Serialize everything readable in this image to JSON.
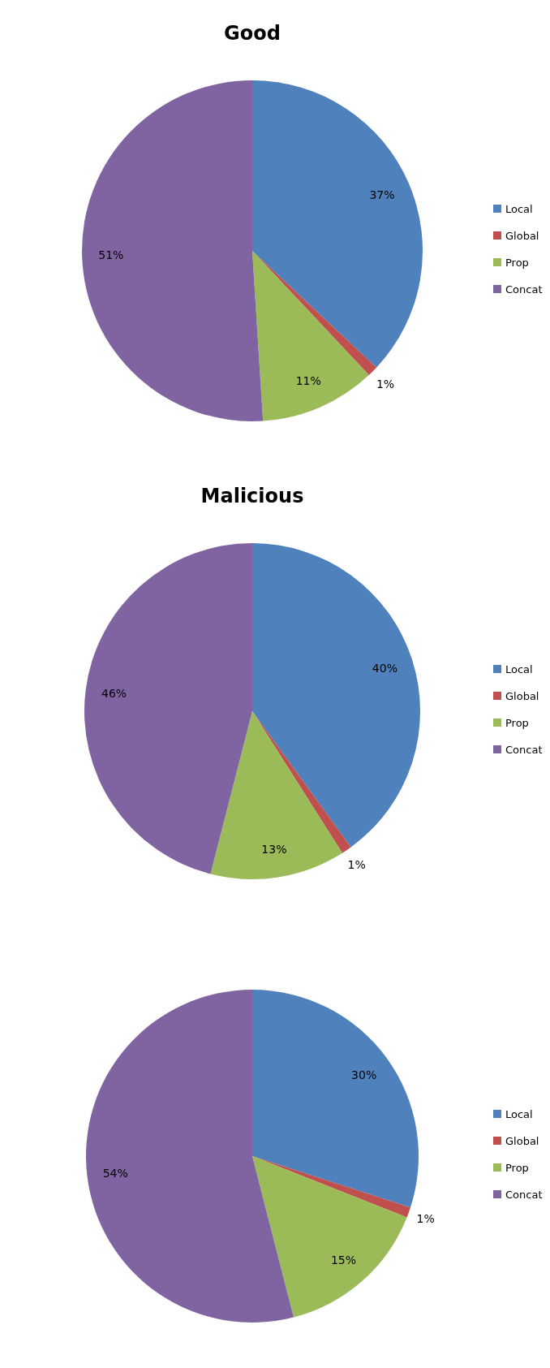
{
  "chart_data": [
    {
      "type": "pie",
      "title": "Good",
      "categories": [
        "Local",
        "Global",
        "Prop",
        "Concat"
      ],
      "values": [
        37,
        1,
        11,
        51
      ],
      "value_labels": [
        "37%",
        "1%",
        "11%",
        "51%"
      ],
      "colors": [
        "#4f81bd",
        "#c0504d",
        "#9bbb59",
        "#8064a2"
      ],
      "legend": "right"
    },
    {
      "type": "pie",
      "title": "Malicious",
      "categories": [
        "Local",
        "Global",
        "Prop",
        "Concat"
      ],
      "values": [
        40,
        1,
        13,
        46
      ],
      "value_labels": [
        "40%",
        "1%",
        "13%",
        "46%"
      ],
      "colors": [
        "#4f81bd",
        "#c0504d",
        "#9bbb59",
        "#8064a2"
      ],
      "legend": "right"
    },
    {
      "type": "pie",
      "categories": [
        "Local",
        "Global",
        "Prop",
        "Concat"
      ],
      "values": [
        30,
        1,
        15,
        54
      ],
      "value_labels": [
        "30%",
        "1%",
        "15%",
        "54%"
      ],
      "colors": [
        "#4f81bd",
        "#c0504d",
        "#9bbb59",
        "#8064a2"
      ],
      "legend": "right"
    }
  ]
}
